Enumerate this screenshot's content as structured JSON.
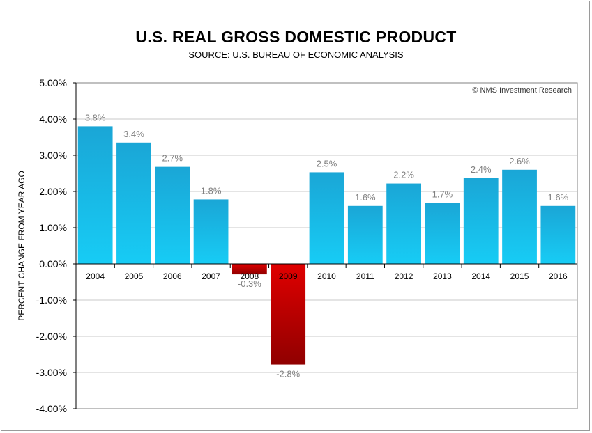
{
  "chart_data": {
    "type": "bar",
    "title": "U.S. REAL GROSS DOMESTIC PRODUCT",
    "subtitle": "SOURCE: U.S. BUREAU OF ECONOMIC ANALYSIS",
    "ylabel": "PERCENT CHANGE FROM YEAR AGO",
    "xlabel": "",
    "credit": "© NMS Investment Research",
    "categories": [
      "2004",
      "2005",
      "2006",
      "2007",
      "2008",
      "2009",
      "2010",
      "2011",
      "2012",
      "2013",
      "2014",
      "2015",
      "2016"
    ],
    "values": [
      3.8,
      3.35,
      2.68,
      1.78,
      -0.29,
      -2.78,
      2.53,
      1.6,
      2.22,
      1.68,
      2.37,
      2.6,
      1.6
    ],
    "data_labels": [
      "3.8%",
      "3.4%",
      "2.7%",
      "1.8%",
      "-0.3%",
      "-2.8%",
      "2.5%",
      "1.6%",
      "2.2%",
      "1.7%",
      "2.4%",
      "2.6%",
      "1.6%"
    ],
    "ylim": [
      -4,
      5
    ],
    "yticks": [
      5,
      4,
      3,
      2,
      1,
      0,
      -1,
      -2,
      -3,
      -4
    ],
    "ytick_labels": [
      "5.00%",
      "4.00%",
      "3.00%",
      "2.00%",
      "1.00%",
      "0.00%",
      "-1.00%",
      "-2.00%",
      "-3.00%",
      "-4.00%"
    ],
    "grid": true,
    "colors": {
      "positive_top": "#1AA6D6",
      "positive_bottom": "#17CCF5",
      "negative_top": "#E00000",
      "negative_bottom": "#900000",
      "grid": "#c8c8c8",
      "data_label": "#808080"
    }
  }
}
